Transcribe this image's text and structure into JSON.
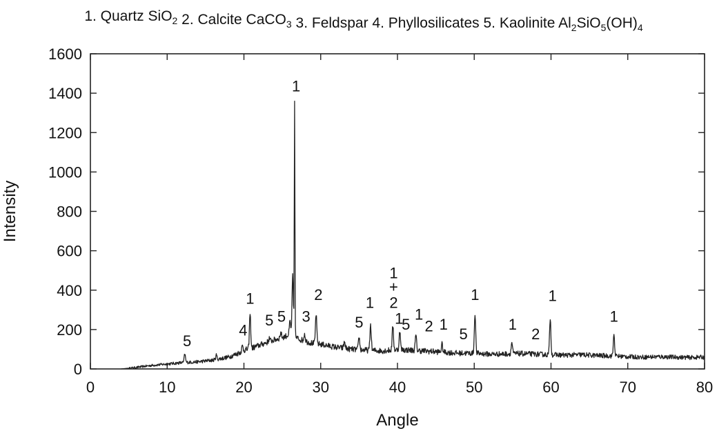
{
  "chart_data": {
    "type": "line",
    "title_items": [
      {
        "number": "1.",
        "name": "Quartz",
        "formula": [
          {
            "t": "SiO"
          },
          {
            "t": "2",
            "sub": true
          }
        ]
      },
      {
        "number": "2.",
        "name": "Calcite",
        "formula": [
          {
            "t": "CaCO"
          },
          {
            "t": "3",
            "sub": true
          }
        ]
      },
      {
        "number": "3.",
        "name": "Feldspar",
        "formula": []
      },
      {
        "number": "4.",
        "name": "Phyllosilicates",
        "formula": []
      },
      {
        "number": "5.",
        "name": "Kaolinite",
        "formula": [
          {
            "t": "Al"
          },
          {
            "t": "2",
            "sub": true
          },
          {
            "t": "SiO"
          },
          {
            "t": "5",
            "sub": true
          },
          {
            "t": "(OH)"
          },
          {
            "t": "4",
            "sub": true
          }
        ]
      }
    ],
    "xlabel": "Angle",
    "ylabel": "Intensity",
    "xlim": [
      0,
      80
    ],
    "ylim": [
      0,
      1600
    ],
    "xticks": [
      0,
      10,
      20,
      30,
      40,
      50,
      60,
      70,
      80
    ],
    "yticks": [
      0,
      200,
      400,
      600,
      800,
      1000,
      1200,
      1400,
      1600
    ],
    "grid": false,
    "series": [
      {
        "color": "#222222",
        "baseline": [
          [
            4,
            0
          ],
          [
            6,
            8
          ],
          [
            8,
            18
          ],
          [
            10,
            25
          ],
          [
            12,
            32
          ],
          [
            14,
            36
          ],
          [
            16,
            45
          ],
          [
            18,
            60
          ],
          [
            19,
            75
          ],
          [
            20,
            95
          ],
          [
            21,
            105
          ],
          [
            22,
            120
          ],
          [
            23,
            135
          ],
          [
            24,
            148
          ],
          [
            25,
            160
          ],
          [
            26,
            175
          ],
          [
            27,
            155
          ],
          [
            28,
            140
          ],
          [
            29,
            130
          ],
          [
            30,
            125
          ],
          [
            32,
            110
          ],
          [
            34,
            100
          ],
          [
            36,
            95
          ],
          [
            38,
            92
          ],
          [
            40,
            98
          ],
          [
            42,
            95
          ],
          [
            44,
            90
          ],
          [
            46,
            85
          ],
          [
            48,
            80
          ],
          [
            50,
            80
          ],
          [
            52,
            75
          ],
          [
            54,
            76
          ],
          [
            56,
            78
          ],
          [
            58,
            75
          ],
          [
            60,
            72
          ],
          [
            62,
            70
          ],
          [
            64,
            72
          ],
          [
            66,
            68
          ],
          [
            68,
            66
          ],
          [
            70,
            62
          ],
          [
            72,
            60
          ],
          [
            74,
            62
          ],
          [
            76,
            60
          ],
          [
            78,
            58
          ],
          [
            80,
            60
          ]
        ],
        "peaks": [
          {
            "x": 12.3,
            "y": 75
          },
          {
            "x": 16.4,
            "y": 70
          },
          {
            "x": 19.8,
            "y": 115
          },
          {
            "x": 20.8,
            "y": 280
          },
          {
            "x": 23.3,
            "y": 155
          },
          {
            "x": 24.8,
            "y": 185
          },
          {
            "x": 26.0,
            "y": 240
          },
          {
            "x": 26.35,
            "y": 470
          },
          {
            "x": 26.6,
            "y": 1360
          },
          {
            "x": 27.9,
            "y": 180
          },
          {
            "x": 29.4,
            "y": 280
          },
          {
            "x": 33.1,
            "y": 140
          },
          {
            "x": 35.0,
            "y": 160
          },
          {
            "x": 36.5,
            "y": 225
          },
          {
            "x": 39.4,
            "y": 220
          },
          {
            "x": 40.3,
            "y": 190
          },
          {
            "x": 42.4,
            "y": 170
          },
          {
            "x": 45.8,
            "y": 125
          },
          {
            "x": 50.1,
            "y": 285
          },
          {
            "x": 54.9,
            "y": 135
          },
          {
            "x": 59.9,
            "y": 260
          },
          {
            "x": 68.2,
            "y": 175
          }
        ]
      }
    ],
    "annotations": [
      {
        "text": "5",
        "x": 12.6,
        "y": 115
      },
      {
        "text": "4",
        "x": 19.9,
        "y": 170
      },
      {
        "text": "1",
        "x": 20.8,
        "y": 330
      },
      {
        "text": "5",
        "x": 23.3,
        "y": 220
      },
      {
        "text": "5",
        "x": 24.9,
        "y": 240
      },
      {
        "text": "1",
        "x": 26.8,
        "y": 1410
      },
      {
        "text": "3",
        "x": 28.1,
        "y": 240
      },
      {
        "text": "2",
        "x": 29.7,
        "y": 350
      },
      {
        "text": "5",
        "x": 35.0,
        "y": 210
      },
      {
        "text": "1",
        "x": 36.4,
        "y": 310
      },
      {
        "text": "1",
        "x": 39.5,
        "y": 460
      },
      {
        "text": "+",
        "x": 39.5,
        "y": 390
      },
      {
        "text": "2",
        "x": 39.5,
        "y": 310
      },
      {
        "text": "1",
        "x": 40.2,
        "y": 230
      },
      {
        "text": "5",
        "x": 41.1,
        "y": 200
      },
      {
        "text": "1",
        "x": 42.8,
        "y": 250
      },
      {
        "text": "2",
        "x": 44.1,
        "y": 190
      },
      {
        "text": "1",
        "x": 46.0,
        "y": 200
      },
      {
        "text": "5",
        "x": 48.6,
        "y": 150
      },
      {
        "text": "1",
        "x": 50.1,
        "y": 350
      },
      {
        "text": "1",
        "x": 55.0,
        "y": 200
      },
      {
        "text": "2",
        "x": 58.0,
        "y": 150
      },
      {
        "text": "1",
        "x": 60.2,
        "y": 345
      },
      {
        "text": "1",
        "x": 68.2,
        "y": 240
      }
    ]
  }
}
